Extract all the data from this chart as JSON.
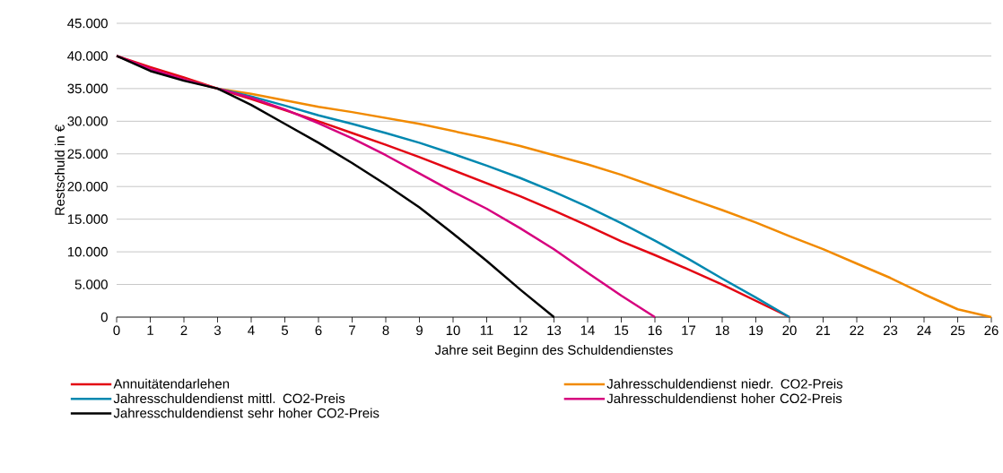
{
  "chart_data": {
    "type": "line",
    "xlabel": "Jahre seit Beginn des Schuldendienstes",
    "ylabel": "Restschuld in €",
    "series": [
      {
        "name": "Annuitätendarlehen",
        "color": "#e30613",
        "x": [
          0,
          1,
          2,
          3,
          4,
          5,
          6,
          7,
          8,
          9,
          10,
          11,
          12,
          13,
          14,
          15,
          16,
          17,
          18,
          19,
          20
        ],
        "values": [
          40000,
          38300,
          36700,
          35000,
          33400,
          31700,
          30000,
          28200,
          26400,
          24500,
          22500,
          20500,
          18500,
          16300,
          14000,
          11600,
          9500,
          7300,
          5000,
          2500,
          0
        ]
      },
      {
        "name": "Jahresschuldendienst niedr. CO2-Preis",
        "color": "#f18a00",
        "x": [
          2,
          3,
          4,
          5,
          6,
          7,
          8,
          9,
          10,
          11,
          12,
          13,
          14,
          15,
          16,
          17,
          18,
          19,
          20,
          21,
          22,
          23,
          24,
          25,
          26
        ],
        "values": [
          36400,
          35000,
          34200,
          33200,
          32200,
          31400,
          30500,
          29600,
          28500,
          27400,
          26200,
          24800,
          23400,
          21800,
          20000,
          18200,
          16400,
          14500,
          12400,
          10400,
          8200,
          6000,
          3500,
          1200,
          0
        ]
      },
      {
        "name": "Jahresschuldendienst mittl. CO2-Preis",
        "color": "#0088b0",
        "x": [
          3,
          4,
          5,
          6,
          7,
          8,
          9,
          10,
          11,
          12,
          13,
          14,
          15,
          16,
          17,
          18,
          19,
          20
        ],
        "values": [
          35000,
          33800,
          32400,
          30900,
          29600,
          28200,
          26700,
          25000,
          23200,
          21300,
          19200,
          16900,
          14400,
          11700,
          8900,
          5900,
          3000,
          0
        ]
      },
      {
        "name": "Jahresschuldendienst hoher CO2-Preis",
        "color": "#d6007e",
        "x": [
          0,
          1,
          2,
          3,
          4,
          5,
          6,
          7,
          8,
          9,
          10,
          11,
          12,
          13,
          14,
          15,
          16
        ],
        "values": [
          40000,
          38000,
          36400,
          35000,
          33600,
          31800,
          29700,
          27400,
          24800,
          22000,
          19200,
          16600,
          13600,
          10400,
          6800,
          3300,
          0
        ]
      },
      {
        "name": "Jahresschuldendienst sehr hoher CO2-Preis",
        "color": "#000000",
        "x": [
          0,
          1,
          2,
          3,
          4,
          5,
          6,
          7,
          8,
          9,
          10,
          11,
          12,
          13
        ],
        "values": [
          40000,
          37700,
          36200,
          35000,
          32500,
          29600,
          26700,
          23600,
          20300,
          16800,
          12800,
          8600,
          4200,
          0
        ]
      }
    ],
    "xlim": [
      0,
      26
    ],
    "xticks": [
      0,
      1,
      2,
      3,
      4,
      5,
      6,
      7,
      8,
      9,
      10,
      11,
      12,
      13,
      14,
      15,
      16,
      17,
      18,
      19,
      20,
      21,
      22,
      23,
      24,
      25,
      26
    ],
    "ylim": [
      0,
      45000
    ],
    "yticks": [
      {
        "value": 0,
        "label": "0"
      },
      {
        "value": 5000,
        "label": "5.000"
      },
      {
        "value": 10000,
        "label": "10.000"
      },
      {
        "value": 15000,
        "label": "15.000"
      },
      {
        "value": 20000,
        "label": "20.000"
      },
      {
        "value": 25000,
        "label": "25.000"
      },
      {
        "value": 30000,
        "label": "30.000"
      },
      {
        "value": 35000,
        "label": "35.000"
      },
      {
        "value": 40000,
        "label": "40.000"
      },
      {
        "value": 45000,
        "label": "45.000"
      }
    ],
    "grid": "y",
    "legend": "bottom",
    "marker": "none",
    "line_style": "solid"
  }
}
